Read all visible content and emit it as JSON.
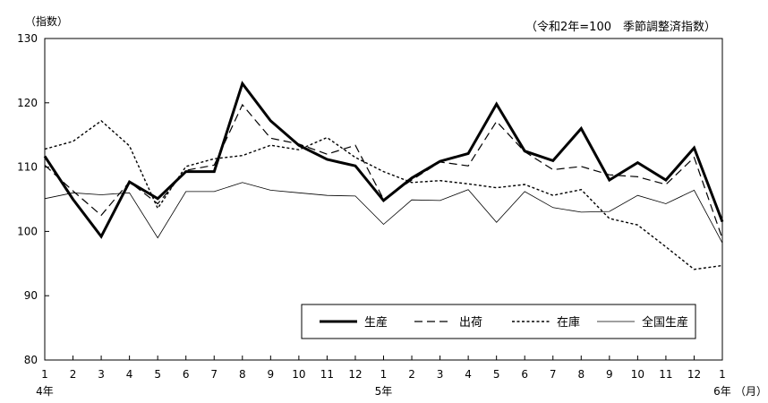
{
  "chart_data": {
    "type": "line",
    "y_unit_label": "（指数）",
    "note": "（令和2年=100　季節調整済指数）",
    "x_unit_label": "（月）",
    "categories": [
      "1",
      "2",
      "3",
      "4",
      "5",
      "6",
      "7",
      "8",
      "9",
      "10",
      "11",
      "12",
      "1",
      "2",
      "3",
      "4",
      "5",
      "6",
      "7",
      "8",
      "9",
      "10",
      "11",
      "12",
      "1"
    ],
    "year_labels": [
      {
        "index": 0,
        "label": "4年"
      },
      {
        "index": 12,
        "label": "5年"
      },
      {
        "index": 24,
        "label": "6年"
      }
    ],
    "ylim": [
      80,
      130
    ],
    "yticks": [
      80,
      90,
      100,
      110,
      120,
      130
    ],
    "grid": false,
    "legend_position": "bottom-right",
    "series": [
      {
        "name": "生産",
        "style": "solid-bold",
        "color": "#000000",
        "values": [
          111.7,
          105.0,
          99.2,
          107.7,
          105.1,
          109.3,
          109.3,
          123.0,
          117.2,
          113.4,
          111.2,
          110.2,
          104.8,
          108.3,
          110.9,
          112.1,
          119.8,
          112.5,
          111.0,
          116.0,
          108.0,
          110.7,
          108.0,
          113.0,
          101.5
        ]
      },
      {
        "name": "出荷",
        "style": "dashed",
        "color": "#000000",
        "values": [
          110.3,
          106.3,
          102.5,
          107.7,
          104.3,
          109.5,
          110.3,
          119.7,
          114.5,
          113.6,
          112.0,
          113.4,
          105.0,
          108.0,
          110.8,
          110.2,
          117.1,
          112.4,
          109.6,
          110.1,
          108.8,
          108.5,
          107.3,
          111.5,
          98.9
        ]
      },
      {
        "name": "在庫",
        "style": "dotted",
        "color": "#000000",
        "values": [
          112.8,
          114.0,
          117.2,
          113.3,
          103.6,
          110.1,
          111.3,
          111.8,
          113.4,
          112.7,
          114.6,
          111.5,
          109.3,
          107.6,
          107.9,
          107.4,
          106.8,
          107.3,
          105.6,
          106.5,
          102.0,
          101.0,
          97.6,
          94.1,
          94.7
        ]
      },
      {
        "name": "全国生産",
        "style": "thin",
        "color": "#000000",
        "values": [
          105.1,
          106.0,
          105.7,
          106.0,
          99.0,
          106.2,
          106.2,
          107.6,
          106.4,
          106.0,
          105.6,
          105.5,
          101.1,
          104.9,
          104.8,
          106.5,
          101.4,
          106.2,
          103.7,
          103.0,
          103.1,
          105.6,
          104.3,
          106.4,
          98.2
        ]
      }
    ]
  }
}
